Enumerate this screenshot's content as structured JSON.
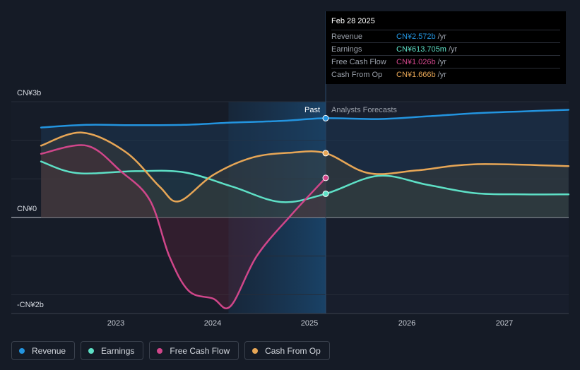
{
  "chart_data": {
    "type": "line",
    "title": "",
    "y_ticks": [
      {
        "value": 3,
        "label": "CN¥3b"
      },
      {
        "value": 0,
        "label": "CN¥0"
      },
      {
        "value": -2,
        "label": "-CN¥2b"
      }
    ],
    "ylim": [
      -2.5,
      3.0
    ],
    "x_ticks": [
      2023,
      2024,
      2025,
      2026,
      2027
    ],
    "xlim": [
      2022.23,
      2027.66
    ],
    "divider_x": 2025.16,
    "past_label": "Past",
    "forecast_label": "Analysts Forecasts",
    "series": [
      {
        "name": "Revenue",
        "color": "#2394df",
        "points": [
          [
            2022.23,
            2.33
          ],
          [
            2022.7,
            2.4
          ],
          [
            2023.2,
            2.39
          ],
          [
            2023.7,
            2.4
          ],
          [
            2024.2,
            2.46
          ],
          [
            2024.7,
            2.5
          ],
          [
            2025.16,
            2.572
          ],
          [
            2025.7,
            2.55
          ],
          [
            2026.2,
            2.62
          ],
          [
            2026.7,
            2.7
          ],
          [
            2027.2,
            2.75
          ],
          [
            2027.66,
            2.79
          ]
        ]
      },
      {
        "name": "Earnings",
        "color": "#5ee0c6",
        "points": [
          [
            2022.23,
            1.45
          ],
          [
            2022.6,
            1.15
          ],
          [
            2023.2,
            1.2
          ],
          [
            2023.7,
            1.17
          ],
          [
            2024.2,
            0.8
          ],
          [
            2024.7,
            0.4
          ],
          [
            2025.16,
            0.614
          ],
          [
            2025.7,
            1.08
          ],
          [
            2026.2,
            0.85
          ],
          [
            2026.7,
            0.63
          ],
          [
            2027.2,
            0.6
          ],
          [
            2027.66,
            0.6
          ]
        ]
      },
      {
        "name": "Free Cash Flow",
        "color": "#d0468a",
        "points": [
          [
            2022.23,
            1.65
          ],
          [
            2022.7,
            1.86
          ],
          [
            2023.05,
            1.2
          ],
          [
            2023.35,
            0.45
          ],
          [
            2023.55,
            -1.0
          ],
          [
            2023.75,
            -1.9
          ],
          [
            2024.0,
            -2.1
          ],
          [
            2024.18,
            -2.3
          ],
          [
            2024.45,
            -1.0
          ],
          [
            2024.8,
            0.05
          ],
          [
            2025.16,
            1.026
          ]
        ]
      },
      {
        "name": "Cash From Op",
        "color": "#e7a656",
        "points": [
          [
            2022.23,
            1.86
          ],
          [
            2022.65,
            2.2
          ],
          [
            2023.1,
            1.7
          ],
          [
            2023.45,
            0.8
          ],
          [
            2023.65,
            0.42
          ],
          [
            2024.0,
            1.1
          ],
          [
            2024.4,
            1.55
          ],
          [
            2024.8,
            1.68
          ],
          [
            2025.16,
            1.666
          ],
          [
            2025.6,
            1.15
          ],
          [
            2026.1,
            1.22
          ],
          [
            2026.7,
            1.38
          ],
          [
            2027.66,
            1.33
          ]
        ]
      }
    ]
  },
  "tooltip": {
    "date": "Feb 28 2025",
    "rows": [
      {
        "name": "Revenue",
        "value": "CN¥2.572b",
        "unit": "/yr",
        "color": "#2394df"
      },
      {
        "name": "Earnings",
        "value": "CN¥613.705m",
        "unit": "/yr",
        "color": "#5ee0c6"
      },
      {
        "name": "Free Cash Flow",
        "value": "CN¥1.026b",
        "unit": "/yr",
        "color": "#d0468a"
      },
      {
        "name": "Cash From Op",
        "value": "CN¥1.666b",
        "unit": "/yr",
        "color": "#e7a656"
      }
    ]
  },
  "legend": [
    {
      "label": "Revenue",
      "color": "#2394df"
    },
    {
      "label": "Earnings",
      "color": "#5ee0c6"
    },
    {
      "label": "Free Cash Flow",
      "color": "#d0468a"
    },
    {
      "label": "Cash From Op",
      "color": "#e7a656"
    }
  ]
}
